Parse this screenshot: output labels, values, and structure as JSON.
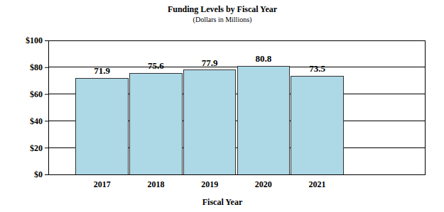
{
  "chart_data": {
    "type": "bar",
    "title": "Funding Levels by Fiscal Year",
    "subtitle": "(Dollars in Millions)",
    "x_label": "Fiscal Year",
    "categories": [
      "2017",
      "2018",
      "2019",
      "2020",
      "2021"
    ],
    "values": [
      71.9,
      75.6,
      77.9,
      80.8,
      73.5
    ],
    "color": "#add8e6",
    "ylim": [
      0,
      100
    ],
    "yticks": [
      {
        "value": 0,
        "label": "$0"
      },
      {
        "value": 20,
        "label": "$20"
      },
      {
        "value": 40,
        "label": "$40"
      },
      {
        "value": 60,
        "label": "$60"
      },
      {
        "value": 80,
        "label": "$80"
      },
      {
        "value": 100,
        "label": "$100"
      }
    ],
    "grid": true,
    "data_labels": true
  }
}
